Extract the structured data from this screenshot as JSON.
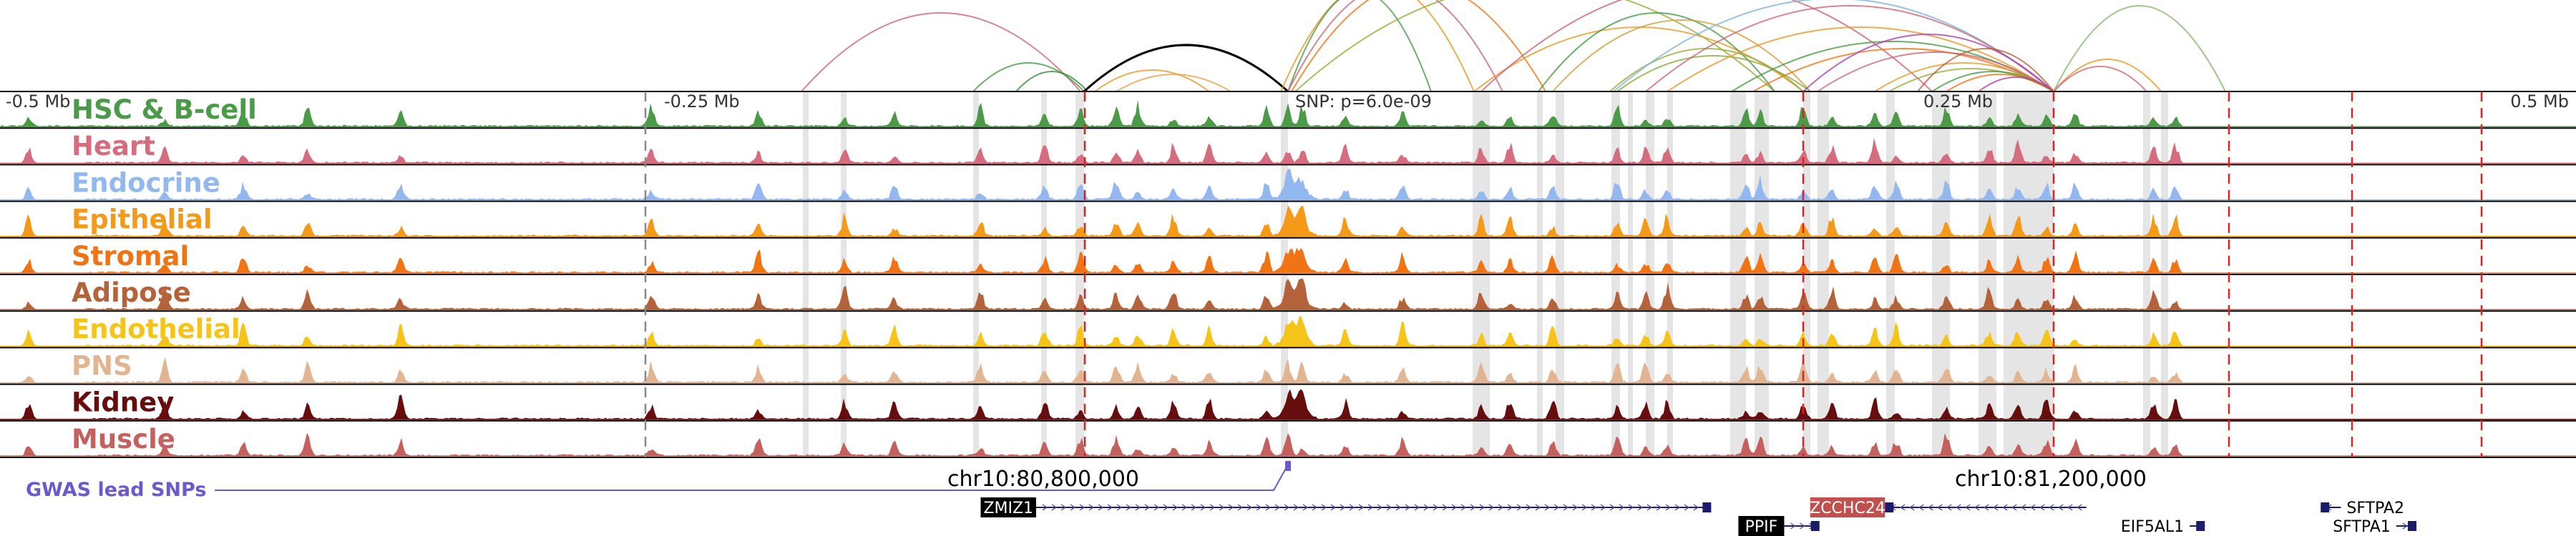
{
  "tracks": [
    {
      "name": "HSC & B-cell",
      "color": "#4a9a48"
    },
    {
      "name": "Heart",
      "color": "#d66d7e"
    },
    {
      "name": "Endocrine",
      "color": "#93b8f0"
    },
    {
      "name": "Epithelial",
      "color": "#f49a18"
    },
    {
      "name": "Stromal",
      "color": "#f07414"
    },
    {
      "name": "Adipose",
      "color": "#b4623a"
    },
    {
      "name": "Endothelial",
      "color": "#f6c418"
    },
    {
      "name": "PNS",
      "color": "#e2b592"
    },
    {
      "name": "Kidney",
      "color": "#660e0e"
    },
    {
      "name": "Muscle",
      "color": "#c4605e"
    }
  ],
  "axis": {
    "labels": [
      {
        "text": "-0.5 Mb",
        "pos": -0.5
      },
      {
        "text": "-0.25 Mb",
        "pos": -0.25
      },
      {
        "text": "0.25 Mb",
        "pos": 0.25
      },
      {
        "text": "0.5 Mb",
        "pos": 0.5
      }
    ]
  },
  "snp": {
    "label": "SNP: p=6.0e-09",
    "pos": 0.0
  },
  "gwas": {
    "label": "GWAS lead SNPs",
    "color": "#6a5acd"
  },
  "coordinates": [
    {
      "text": "chr10:80,800,000",
      "pos": -0.1
    },
    {
      "text": "chr10:81,200,000",
      "pos": 0.3
    }
  ],
  "genes": [
    {
      "name": "ZMIZ1",
      "start": -0.1,
      "end": 0.168,
      "strand": "+",
      "highlight": "black"
    },
    {
      "name": "PPIF",
      "start": 0.197,
      "end": 0.211,
      "strand": "+",
      "highlight": "black"
    },
    {
      "name": "ZCCHC24",
      "start": 0.237,
      "end": 0.317,
      "strand": "-",
      "highlight": "red"
    },
    {
      "name": "EIF5AL1",
      "start": 0.358,
      "end": 0.364,
      "strand": "+",
      "highlight": "none"
    },
    {
      "name": "SFTPA2",
      "start": 0.41,
      "end": 0.418,
      "strand": "-",
      "highlight": "none"
    },
    {
      "name": "SFTPA1",
      "start": 0.44,
      "end": 0.448,
      "strand": "+",
      "highlight": "none"
    }
  ]
}
